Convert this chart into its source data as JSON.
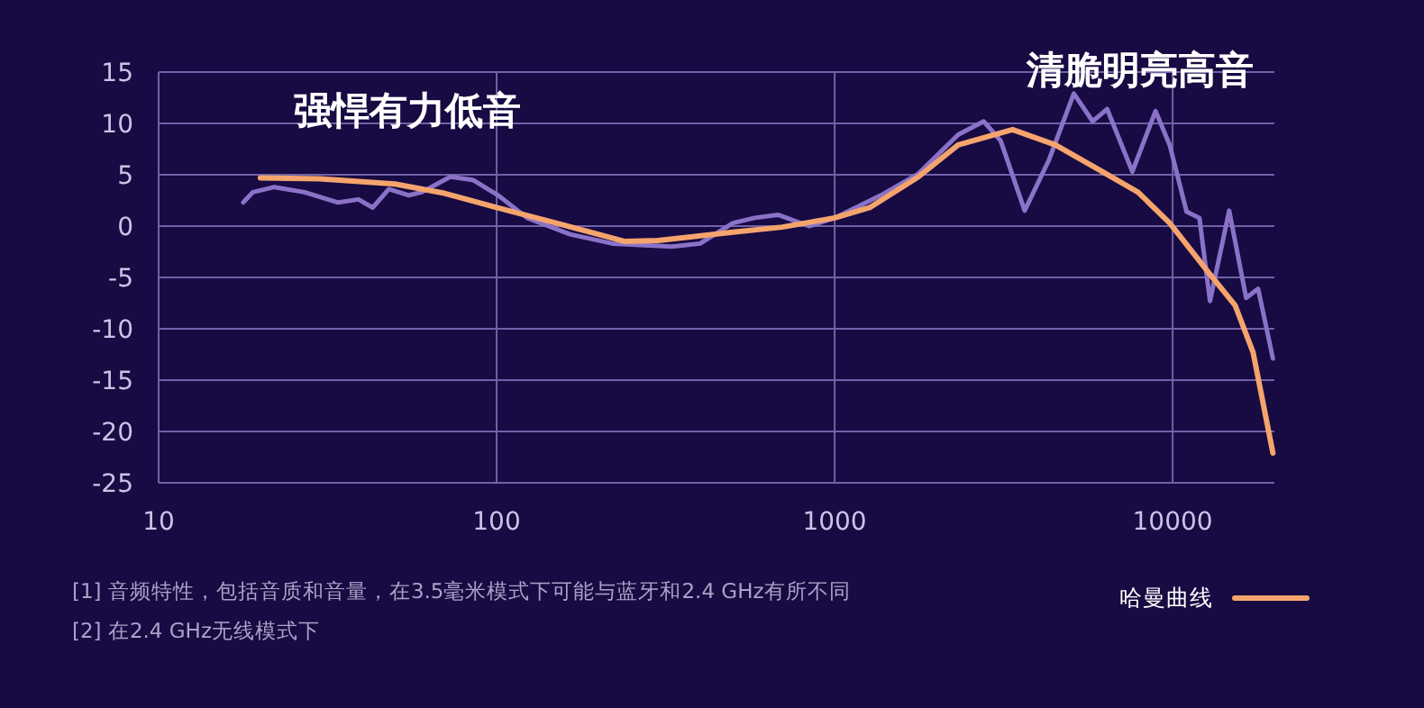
{
  "chart_data": {
    "type": "line",
    "log": "x",
    "grid": true,
    "legend": "bottom right",
    "xlim": [
      10,
      20000
    ],
    "ylim": [
      -25,
      15
    ],
    "xticks": [
      10,
      100,
      1000,
      10000
    ],
    "yticks": [
      -25,
      -20,
      -15,
      -10,
      -5,
      0,
      5,
      10,
      15
    ],
    "annotations": [
      "强悍有力低音",
      "清脆明亮高音",
      "[1] 音频特性，包括音质和音量，在3.5毫米模式下可能与蓝牙和2.4 GHz有所不同",
      "[2] 在2.4 GHz无线模式下"
    ],
    "series": [
      {
        "color": "#8a72c8",
        "x": [
          17.8,
          19,
          22,
          27,
          34,
          39,
          43,
          48,
          55,
          60,
          73,
          85,
          101,
          123,
          165,
          220,
          330,
          400,
          500,
          580,
          680,
          840,
          1000,
          1370,
          1770,
          2320,
          2760,
          3100,
          3650,
          4300,
          5100,
          5800,
          6400,
          7600,
          8900,
          9800,
          11000,
          12000,
          12900,
          14700,
          16500,
          17900,
          19800
        ],
        "values": [
          2.3,
          3.3,
          3.8,
          3.3,
          2.3,
          2.6,
          1.8,
          3.6,
          3.0,
          3.3,
          4.8,
          4.5,
          3.0,
          0.8,
          -0.8,
          -1.7,
          -2.0,
          -1.7,
          0.3,
          0.8,
          1.1,
          0,
          0.8,
          3.0,
          5.1,
          8.9,
          10.2,
          8.3,
          1.5,
          6.4,
          12.9,
          10.2,
          11.4,
          5.3,
          11.2,
          7.9,
          1.4,
          0.8,
          -7.3,
          1.5,
          -7.0,
          -6.1,
          -12.9
        ]
      },
      {
        "name": "哈曼曲线",
        "color": "#f4a46c",
        "x": [
          20,
          30,
          50,
          70,
          100,
          150,
          200,
          240,
          300,
          500,
          700,
          1000,
          1270,
          1770,
          2320,
          3360,
          4500,
          6200,
          7900,
          9800,
          12900,
          15300,
          17300,
          19800
        ],
        "values": [
          4.7,
          4.6,
          4.1,
          3.2,
          1.8,
          0.3,
          -0.8,
          -1.5,
          -1.4,
          -0.6,
          -0.1,
          0.8,
          1.8,
          4.8,
          7.9,
          9.4,
          7.9,
          5.3,
          3.3,
          0.3,
          -4.7,
          -7.7,
          -12.3,
          -22.1
        ]
      }
    ]
  }
}
